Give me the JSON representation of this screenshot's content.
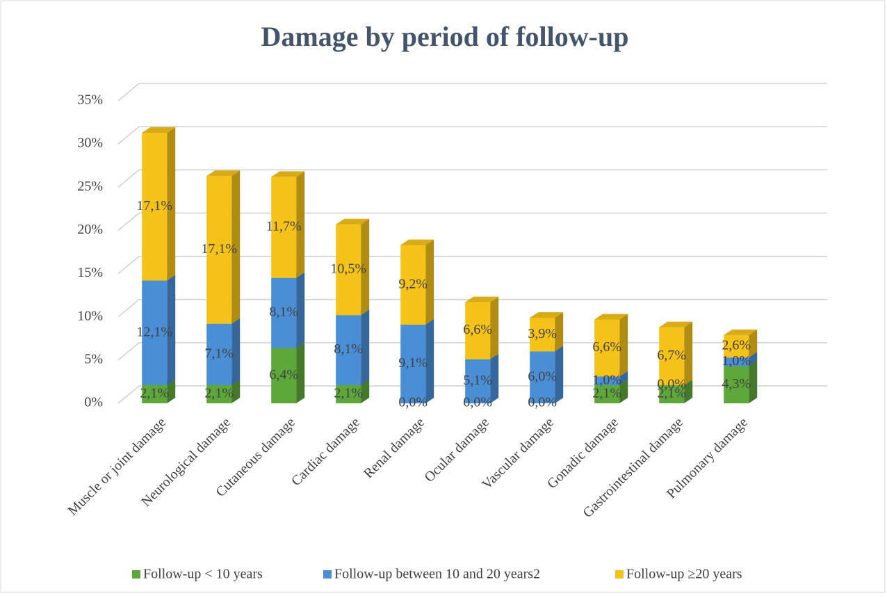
{
  "chart_data": {
    "type": "bar",
    "stacked": true,
    "title": "Damage by period of follow-up",
    "categories": [
      "Muscle or joint damage",
      "Neurological damage",
      "Cutaneous damage",
      "Cardiac damage",
      "Renal damage",
      "Ocular damage",
      "Vascular damage",
      "Gonadic damage",
      "Gastrointestinal damage",
      "Pulmonary damage"
    ],
    "series": [
      {
        "name": "Follow-up < 10 years",
        "color": "#5ea73a",
        "values": [
          2.1,
          2.1,
          6.4,
          2.1,
          0.0,
          0.0,
          0.0,
          2.1,
          2.1,
          4.3
        ],
        "value_labels": [
          "2,1%",
          "2,1%",
          "6,4%",
          "2,1%",
          "0,0%",
          "0,0%",
          "0,0%",
          "2,1%",
          "2,1%",
          "4,3%"
        ]
      },
      {
        "name": "Follow-up between 10 and 20 years2",
        "color": "#4a8fd6",
        "values": [
          12.1,
          7.1,
          8.1,
          8.1,
          9.1,
          5.1,
          6.0,
          1.0,
          0.0,
          1.0
        ],
        "value_labels": [
          "12,1%",
          "7,1%",
          "8,1%",
          "8,1%",
          "9,1%",
          "5,1%",
          "6,0%",
          "1,0%",
          "0,0%",
          "1,0%"
        ]
      },
      {
        "name": "Follow-up ≥20 years",
        "color": "#f5c21a",
        "values": [
          17.1,
          17.1,
          11.7,
          10.5,
          9.2,
          6.6,
          3.9,
          6.6,
          6.7,
          2.6
        ],
        "value_labels": [
          "17,1%",
          "17,1%",
          "11,7%",
          "10,5%",
          "9,2%",
          "6,6%",
          "3,9%",
          "6,6%",
          "6,7%",
          "2,6%"
        ]
      }
    ],
    "ylim": [
      0,
      35
    ],
    "yticks": [
      {
        "value": 0,
        "label": "0%"
      },
      {
        "value": 5,
        "label": "5%"
      },
      {
        "value": 10,
        "label": "10%"
      },
      {
        "value": 15,
        "label": "15%"
      },
      {
        "value": 20,
        "label": "20%"
      },
      {
        "value": 25,
        "label": "25%"
      },
      {
        "value": 30,
        "label": "30%"
      },
      {
        "value": 35,
        "label": "35%"
      }
    ],
    "grid": true,
    "legend": "bottom"
  }
}
